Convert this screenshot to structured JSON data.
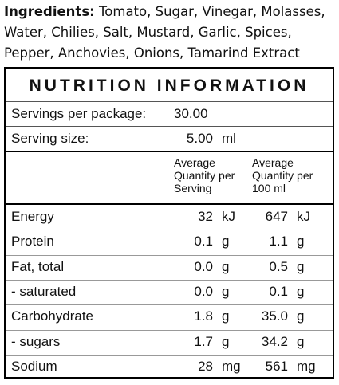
{
  "ingredients": {
    "label": "Ingredients:",
    "text": "Tomato, Sugar, Vinegar, Molasses, Water, Chilies, Salt, Mustard, Garlic, Spices, Pepper, Anchovies, Onions, Tamarind Extract"
  },
  "panel": {
    "title": "NUTRITION INFORMATION",
    "servings": {
      "label": "Servings per package:",
      "value": "30.00"
    },
    "serving_size": {
      "label": "Serving size:",
      "value": "5.00",
      "unit": "ml"
    },
    "headers": [
      "Average Quantity per Serving",
      "Average Quantity per 100 ml"
    ],
    "rows": [
      [
        "Energy",
        "32",
        "kJ",
        "647",
        "kJ"
      ],
      [
        "Protein",
        "0.1",
        "g",
        "1.1",
        "g"
      ],
      [
        "Fat, total",
        "0.0",
        "g",
        "0.5",
        "g"
      ],
      [
        "- saturated",
        "0.0",
        "g",
        "0.1",
        "g"
      ],
      [
        "Carbohydrate",
        "1.8",
        "g",
        "35.0",
        "g"
      ],
      [
        "- sugars",
        "1.7",
        "g",
        "34.2",
        "g"
      ],
      [
        "Sodium",
        "28",
        "mg",
        "561",
        "mg"
      ]
    ]
  }
}
